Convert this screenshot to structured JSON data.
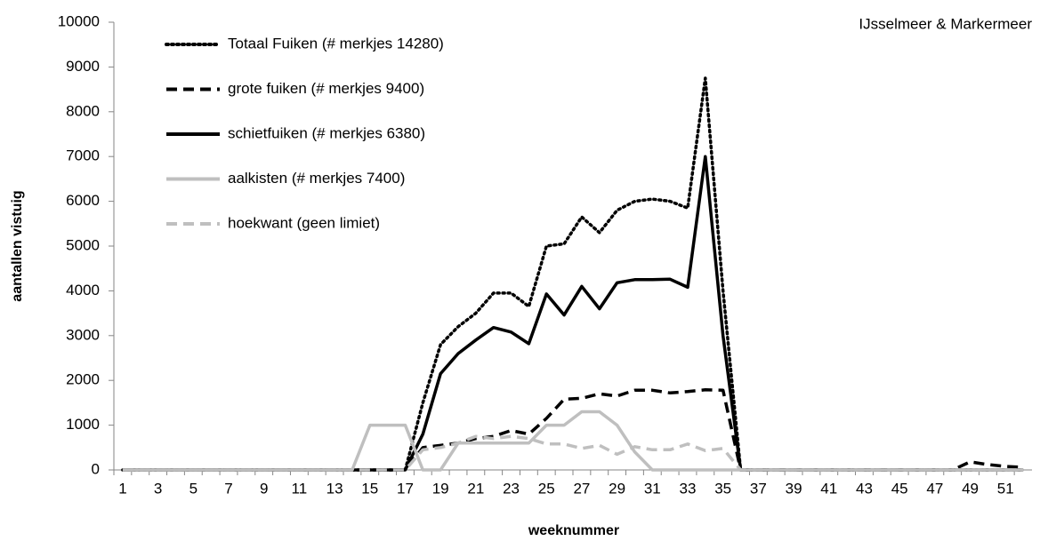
{
  "chart_data": {
    "type": "line",
    "annotation": "IJsselmeer & Markermeer",
    "x_label": "weeknummer",
    "y_label": "aantallen vistuig",
    "categories": [
      "1",
      null,
      "3",
      null,
      "5",
      null,
      "7",
      null,
      "9",
      null,
      "11",
      null,
      "13",
      null,
      "15",
      null,
      "17",
      null,
      "19",
      null,
      "21",
      null,
      "23",
      null,
      "25",
      null,
      "27",
      null,
      "29",
      null,
      "31",
      null,
      "33",
      null,
      "35",
      null,
      "37",
      null,
      "39",
      null,
      "41",
      null,
      "43",
      null,
      "45",
      null,
      "47",
      null,
      "49",
      null,
      "51",
      null
    ],
    "ylim": [
      0,
      10000
    ],
    "yticks": [
      0,
      1000,
      2000,
      3000,
      4000,
      5000,
      6000,
      7000,
      8000,
      9000,
      10000
    ],
    "series": [
      {
        "name": "Totaal Fuiken (# merkjes 14280)",
        "color": "#000000",
        "dash": "dotted",
        "values": [
          0,
          0,
          0,
          0,
          0,
          0,
          0,
          0,
          0,
          0,
          0,
          0,
          0,
          0,
          0,
          0,
          0,
          1500,
          2800,
          3200,
          3500,
          3950,
          3950,
          3650,
          5000,
          5050,
          5650,
          5300,
          5800,
          6000,
          6050,
          6000,
          5850,
          8750,
          4000,
          0,
          0,
          0,
          0,
          0,
          0,
          0,
          0,
          0,
          0,
          0,
          0,
          0,
          0,
          0,
          0,
          0
        ]
      },
      {
        "name": "grote fuiken (# merkjes 9400)",
        "color": "#000000",
        "dash": "dashed",
        "values": [
          0,
          0,
          0,
          0,
          0,
          0,
          0,
          0,
          0,
          0,
          0,
          0,
          0,
          0,
          0,
          0,
          0,
          500,
          550,
          600,
          700,
          750,
          880,
          800,
          1150,
          1580,
          1600,
          1700,
          1650,
          1780,
          1780,
          1720,
          1750,
          1790,
          1780,
          0,
          0,
          0,
          0,
          0,
          0,
          0,
          0,
          0,
          0,
          0,
          0,
          0,
          180,
          120,
          80,
          60
        ]
      },
      {
        "name": "schietfuiken (# merkjes 6380)",
        "color": "#000000",
        "dash": "solid",
        "values": [
          0,
          0,
          0,
          0,
          0,
          0,
          0,
          0,
          0,
          0,
          0,
          0,
          0,
          0,
          0,
          0,
          0,
          800,
          2150,
          2600,
          2900,
          3180,
          3080,
          2820,
          3930,
          3460,
          4100,
          3600,
          4180,
          4250,
          4250,
          4260,
          4080,
          7000,
          3000,
          0,
          0,
          0,
          0,
          0,
          0,
          0,
          0,
          0,
          0,
          0,
          0,
          0,
          0,
          0,
          0,
          0
        ]
      },
      {
        "name": "aalkisten (# merkjes 7400)",
        "color": "#bfbfbf",
        "dash": "solid",
        "values": [
          0,
          0,
          0,
          0,
          0,
          0,
          0,
          0,
          0,
          0,
          0,
          0,
          0,
          0,
          1000,
          1000,
          1000,
          0,
          0,
          600,
          600,
          600,
          600,
          600,
          1000,
          1000,
          1300,
          1300,
          1000,
          400,
          0,
          0,
          0,
          0,
          0,
          0,
          0,
          0,
          0,
          0,
          0,
          0,
          0,
          0,
          0,
          0,
          0,
          0,
          0,
          0,
          0,
          0
        ]
      },
      {
        "name": "hoekwant (geen limiet)",
        "color": "#bfbfbf",
        "dash": "dashed",
        "values": [
          0,
          0,
          0,
          0,
          0,
          0,
          0,
          0,
          0,
          0,
          0,
          0,
          0,
          0,
          0,
          0,
          0,
          450,
          500,
          600,
          750,
          700,
          750,
          700,
          580,
          580,
          480,
          550,
          350,
          520,
          450,
          450,
          580,
          430,
          480,
          0,
          0,
          0,
          0,
          0,
          0,
          0,
          0,
          0,
          0,
          0,
          0,
          0,
          0,
          0,
          0,
          0
        ]
      }
    ]
  }
}
